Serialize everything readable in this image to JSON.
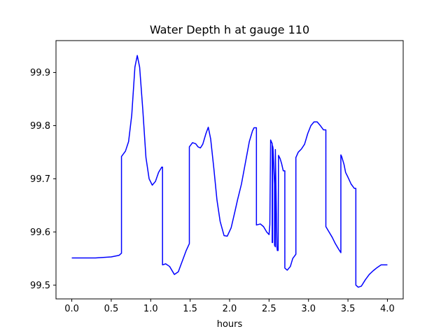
{
  "chart_data": {
    "type": "line",
    "title": "Water Depth h at gauge 110",
    "xlabel": "hours",
    "ylabel": "",
    "xlim": [
      -0.2,
      4.2
    ],
    "ylim": [
      99.474,
      99.96
    ],
    "xticks": [
      0.0,
      0.5,
      1.0,
      1.5,
      2.0,
      2.5,
      3.0,
      3.5,
      4.0
    ],
    "xtick_labels": [
      "0.0",
      "0.5",
      "1.0",
      "1.5",
      "2.0",
      "2.5",
      "3.0",
      "3.5",
      "4.0"
    ],
    "yticks": [
      99.5,
      99.6,
      99.7,
      99.8,
      99.9
    ],
    "ytick_labels": [
      "99.5",
      "99.6",
      "99.7",
      "99.8",
      "99.9"
    ],
    "grid": false,
    "series": [
      {
        "color": "#0000ff",
        "x": [
          0.0,
          0.3,
          0.5,
          0.6,
          0.63,
          0.63,
          0.68,
          0.72,
          0.76,
          0.8,
          0.83,
          0.86,
          0.9,
          0.94,
          0.98,
          1.02,
          1.06,
          1.1,
          1.14,
          1.15,
          1.15,
          1.19,
          1.24,
          1.3,
          1.35,
          1.4,
          1.45,
          1.49,
          1.49,
          1.53,
          1.57,
          1.6,
          1.63,
          1.66,
          1.7,
          1.73,
          1.76,
          1.8,
          1.84,
          1.88,
          1.93,
          1.97,
          2.02,
          2.07,
          2.1,
          2.15,
          2.2,
          2.25,
          2.29,
          2.31,
          2.34,
          2.34,
          2.39,
          2.43,
          2.47,
          2.5,
          2.51,
          2.52,
          2.54,
          2.54,
          2.545,
          2.545,
          2.55,
          2.57,
          2.57,
          2.58,
          2.58,
          2.6,
          2.605,
          2.615,
          2.62,
          2.64,
          2.66,
          2.68,
          2.7,
          2.7,
          2.73,
          2.77,
          2.8,
          2.84,
          2.84,
          2.87,
          2.91,
          2.95,
          2.99,
          3.03,
          3.07,
          3.11,
          3.15,
          3.19,
          3.22,
          3.22,
          3.26,
          3.3,
          3.34,
          3.38,
          3.41,
          3.41,
          3.42,
          3.45,
          3.47,
          3.5,
          3.54,
          3.58,
          3.6,
          3.6,
          3.63,
          3.67,
          3.72,
          3.77,
          3.82,
          3.87,
          3.92,
          3.96,
          4.0
        ],
        "y": [
          99.551,
          99.551,
          99.553,
          99.556,
          99.56,
          99.742,
          99.752,
          99.77,
          99.82,
          99.91,
          99.932,
          99.91,
          99.83,
          99.74,
          99.7,
          99.688,
          99.695,
          99.712,
          99.722,
          99.722,
          99.538,
          99.54,
          99.535,
          99.52,
          99.525,
          99.545,
          99.565,
          99.578,
          99.76,
          99.768,
          99.766,
          99.76,
          99.758,
          99.765,
          99.785,
          99.797,
          99.775,
          99.72,
          99.66,
          99.62,
          99.593,
          99.592,
          99.608,
          99.64,
          99.66,
          99.69,
          99.73,
          99.77,
          99.79,
          99.796,
          99.796,
          99.613,
          99.615,
          99.61,
          99.6,
          99.595,
          99.614,
          99.773,
          99.766,
          99.58,
          99.58,
          99.762,
          99.758,
          99.69,
          99.575,
          99.572,
          99.755,
          99.572,
          99.565,
          99.565,
          99.744,
          99.738,
          99.728,
          99.715,
          99.715,
          99.532,
          99.528,
          99.535,
          99.55,
          99.558,
          99.74,
          99.75,
          99.756,
          99.765,
          99.785,
          99.8,
          99.807,
          99.807,
          99.8,
          99.792,
          99.792,
          99.61,
          99.6,
          99.59,
          99.578,
          99.568,
          99.561,
          99.745,
          99.742,
          99.727,
          99.712,
          99.703,
          99.69,
          99.682,
          99.682,
          99.5,
          99.496,
          99.498,
          99.51,
          99.52,
          99.527,
          99.533,
          99.538,
          99.538,
          99.538
        ]
      }
    ]
  }
}
